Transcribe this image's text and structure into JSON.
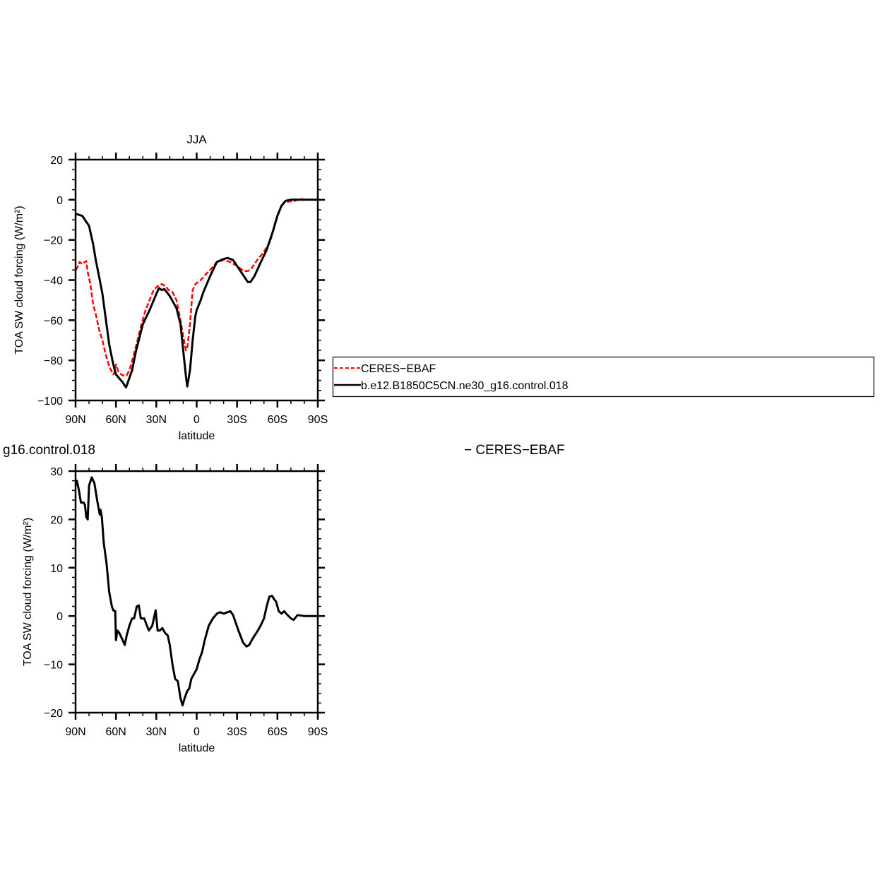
{
  "fragments": {
    "left_title": "g16.control.018",
    "right_title": "− CERES−EBAF"
  },
  "legend": {
    "position": "right-middle",
    "items": [
      {
        "label": "CERES−EBAF",
        "color": "#ff0000",
        "style": "dashed"
      },
      {
        "label": "b.e12.B1850C5CN.ne30_g16.control.018",
        "color": "#000000",
        "style": "solid"
      }
    ]
  },
  "chart_data": [
    {
      "type": "line",
      "title": "JJA",
      "xlabel": "latitude",
      "ylabel": "TOA SW cloud forcing (W/m²)",
      "xlim": [
        90,
        -90
      ],
      "ylim": [
        -100,
        20
      ],
      "x_ticks": [
        90,
        60,
        30,
        0,
        -30,
        -60,
        -90
      ],
      "x_tick_labels": [
        "90N",
        "60N",
        "30N",
        "0",
        "30S",
        "60S",
        "90S"
      ],
      "y_ticks": [
        20,
        0,
        -20,
        -40,
        -60,
        -80,
        -100
      ],
      "y_tick_labels": [
        "20",
        "0",
        "−20",
        "−40",
        "−60",
        "−80",
        "−100"
      ],
      "grid": false,
      "series": [
        {
          "name": "CERES−EBAF",
          "color": "#ff0000",
          "style": "dashed",
          "x": [
            90,
            88,
            87,
            85,
            83,
            82,
            81,
            79,
            77,
            75,
            72,
            70,
            68,
            65,
            62,
            61,
            60,
            58,
            55,
            52,
            50,
            47,
            44,
            41,
            38,
            35,
            32,
            29,
            26,
            23,
            21,
            18,
            15,
            12,
            10,
            8,
            7,
            5,
            3,
            1,
            -3,
            -7,
            -10,
            -15,
            -20,
            -25,
            -30,
            -35,
            -38,
            -41,
            -45,
            -50,
            -55,
            -58,
            -61,
            -64,
            -67,
            -70,
            -73,
            -75,
            -77,
            -80,
            -90
          ],
          "y": [
            -35,
            -33,
            -31,
            -32,
            -31,
            -30.5,
            -36,
            -42,
            -52,
            -57,
            -66,
            -70,
            -76,
            -83,
            -87,
            -86,
            -82,
            -86,
            -87.5,
            -87.5,
            -85,
            -78,
            -70,
            -62,
            -55,
            -50,
            -45,
            -43,
            -42,
            -43,
            -45,
            -46,
            -50,
            -60,
            -68,
            -75,
            -74,
            -62,
            -45,
            -42,
            -40,
            -37,
            -35,
            -31,
            -30,
            -31,
            -33,
            -35.5,
            -35.5,
            -34,
            -30,
            -26,
            -20,
            -12,
            -6,
            -2,
            -1,
            -0.8,
            -0.5,
            0,
            0.5,
            0,
            0
          ]
        },
        {
          "name": "b.e12.B1850C5CN.ne30_g16.control.018",
          "color": "#000000",
          "style": "solid",
          "x": [
            90,
            85,
            80,
            77,
            75,
            72,
            70,
            67,
            65,
            62,
            60,
            55,
            52.5,
            48,
            45,
            40,
            35,
            30,
            28,
            26,
            24,
            20,
            15,
            12,
            10,
            8,
            7,
            5,
            3,
            1,
            0,
            -3,
            -5,
            -10,
            -15,
            -20,
            -23,
            -27,
            -30,
            -35,
            -38,
            -40,
            -43,
            -47,
            -52,
            -57,
            -60,
            -63,
            -66,
            -70,
            -90
          ],
          "y": [
            -7,
            -8,
            -13,
            -22,
            -30,
            -40,
            -47,
            -62,
            -72,
            -82,
            -87,
            -91,
            -93.5,
            -85,
            -75,
            -62,
            -55,
            -47,
            -44,
            -45,
            -44.5,
            -48,
            -54,
            -62,
            -75,
            -88,
            -93,
            -85,
            -70,
            -58,
            -55,
            -50,
            -46,
            -38,
            -31,
            -29.5,
            -29,
            -30,
            -33,
            -38,
            -41,
            -41,
            -38,
            -32,
            -25,
            -15,
            -8,
            -3,
            -0.5,
            0,
            0
          ]
        }
      ]
    },
    {
      "type": "line",
      "title": "",
      "xlabel": "latitude",
      "ylabel": "TOA SW cloud forcing (W/m²)",
      "xlim": [
        90,
        -90
      ],
      "ylim": [
        -20,
        30
      ],
      "x_ticks": [
        90,
        60,
        30,
        0,
        -30,
        -60,
        -90
      ],
      "x_tick_labels": [
        "90N",
        "60N",
        "30N",
        "0",
        "30S",
        "60S",
        "90S"
      ],
      "y_ticks": [
        30,
        20,
        10,
        0,
        -10,
        -20
      ],
      "y_tick_labels": [
        "30",
        "20",
        "10",
        "0",
        "−10",
        "−20"
      ],
      "grid": false,
      "series": [
        {
          "color": "#000000",
          "style": "solid",
          "x": [
            90,
            89,
            87.5,
            86,
            84,
            83,
            82,
            81,
            80,
            78,
            76,
            74,
            72,
            71.5,
            70.5,
            69,
            67,
            65,
            63,
            62,
            60.5,
            60,
            59,
            57.5,
            55,
            53.5,
            52,
            50,
            48,
            46.5,
            44.5,
            43,
            41.5,
            39,
            37,
            35.5,
            33,
            30.5,
            29,
            27.5,
            25.5,
            23.5,
            21.5,
            20,
            18,
            16,
            14,
            12,
            10.5,
            9,
            7,
            5.5,
            4,
            2,
            0,
            -2,
            -4,
            -6,
            -9,
            -12,
            -15,
            -17.5,
            -20,
            -23,
            -25,
            -27,
            -31,
            -34.5,
            -37,
            -39,
            -42,
            -45,
            -47.5,
            -50,
            -52,
            -54,
            -56,
            -57.5,
            -59,
            -61,
            -63,
            -65,
            -67.5,
            -70,
            -72,
            -75,
            -80,
            -90
          ],
          "y": [
            27,
            28,
            26,
            23.5,
            23.5,
            23,
            20.5,
            20,
            27,
            28.7,
            27.5,
            24,
            21,
            22,
            20.5,
            15,
            11,
            5,
            2,
            1.2,
            1,
            -5,
            -3,
            -3.5,
            -5,
            -6,
            -4,
            -2,
            -0.5,
            -0.5,
            2,
            2.2,
            -0.5,
            -0.5,
            -2,
            -3,
            -2,
            1.2,
            -3,
            -3,
            -2.5,
            -3.5,
            -4,
            -6,
            -10,
            -13,
            -13.5,
            -17,
            -18.5,
            -17,
            -15.5,
            -15,
            -13,
            -12,
            -11,
            -9,
            -7.5,
            -5,
            -2,
            -0.5,
            0.5,
            0.8,
            0.5,
            0.8,
            1,
            0.2,
            -3,
            -5.5,
            -6.3,
            -6,
            -4.5,
            -3.2,
            -2,
            -0.5,
            2,
            4,
            4.2,
            3.5,
            3,
            1,
            0.5,
            1,
            0.2,
            -0.5,
            -0.8,
            0.2,
            0,
            0
          ]
        }
      ]
    }
  ]
}
